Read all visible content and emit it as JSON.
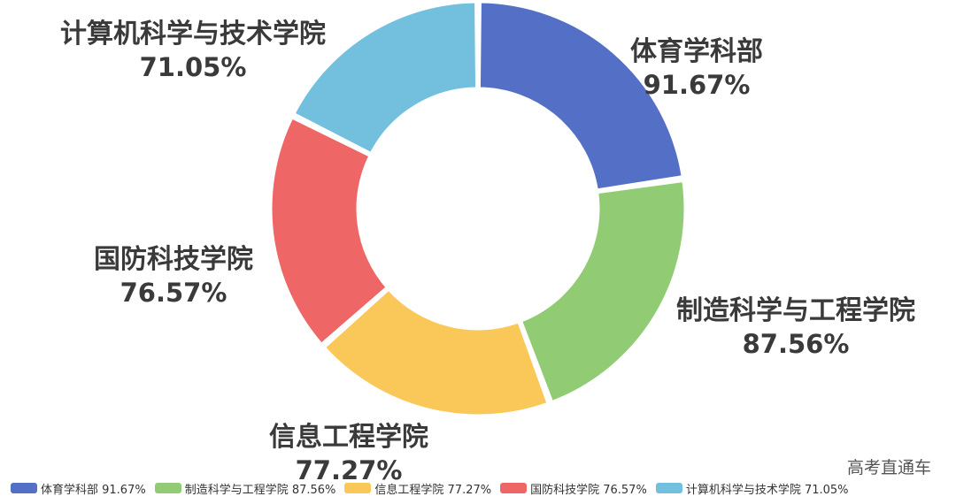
{
  "chart_data": {
    "type": "pie",
    "donut": true,
    "categories": [
      "体育学科部",
      "制造科学与工程学院",
      "信息工程学院",
      "国防科技学院",
      "计算机科学与技术学院"
    ],
    "values": [
      91.67,
      87.56,
      77.27,
      76.57,
      71.05
    ],
    "value_labels": [
      "91.67%",
      "87.56%",
      "77.27%",
      "76.57%",
      "71.05%"
    ],
    "colors": [
      "#5470c6",
      "#91cc75",
      "#fac858",
      "#ee6666",
      "#73c0de"
    ],
    "legend": [
      "体育学科部 91.67%",
      "制造科学与工程学院 87.56%",
      "信息工程学院 77.27%",
      "国防科技学院 76.57%",
      "计算机科学与技术学院 71.05%"
    ],
    "legend_position": "bottom"
  },
  "watermark": "高考直通车"
}
